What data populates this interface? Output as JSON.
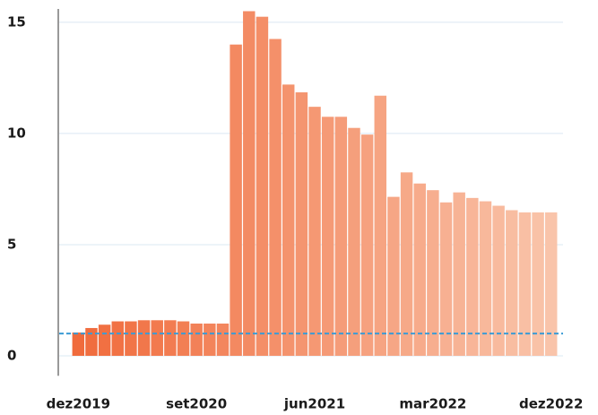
{
  "chart_data": {
    "type": "bar",
    "categories": [
      "dez2019",
      null,
      null,
      null,
      null,
      null,
      null,
      null,
      null,
      "set2020",
      null,
      null,
      null,
      null,
      null,
      null,
      null,
      null,
      "jun2021",
      null,
      null,
      null,
      null,
      null,
      null,
      null,
      null,
      "mar2022",
      null,
      null,
      null,
      null,
      null,
      null,
      null,
      null,
      "dez2022"
    ],
    "values": [
      1.05,
      1.25,
      1.4,
      1.55,
      1.55,
      1.6,
      1.6,
      1.6,
      1.55,
      1.45,
      1.45,
      1.45,
      14.0,
      15.5,
      15.25,
      14.25,
      12.2,
      11.85,
      11.2,
      10.75,
      10.75,
      10.25,
      9.95,
      11.7,
      7.15,
      8.25,
      7.75,
      7.45,
      6.9,
      7.35,
      7.1,
      6.95,
      6.75,
      6.55,
      6.45,
      6.45,
      6.45
    ],
    "color_start": "#f06b3c",
    "color_end": "#f9c4aa",
    "reference_line": 1.0,
    "reference_color": "#3a9bd5",
    "ylim": [
      -0.9,
      15.6
    ],
    "yticks": [
      0,
      5,
      10,
      15
    ],
    "grid": true
  }
}
